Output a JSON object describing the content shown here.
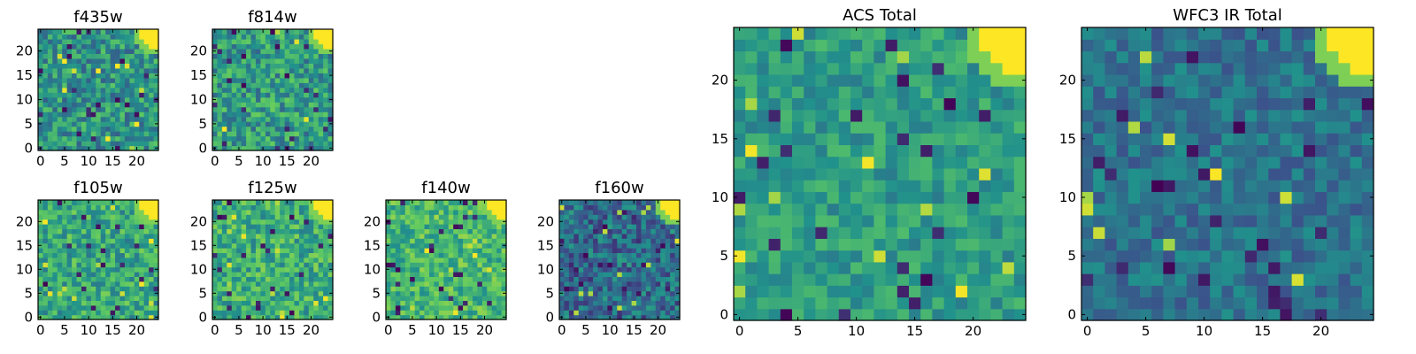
{
  "figure": {
    "colormap": "viridis",
    "colormap_stops": [
      "#440154",
      "#3b528b",
      "#21918c",
      "#5ec962",
      "#fde725"
    ]
  },
  "chart_data": [
    {
      "type": "heatmap",
      "title": "f435w",
      "grid_size": 25,
      "xlim": [
        0,
        24
      ],
      "ylim": [
        0,
        24
      ],
      "xticks": [
        "0",
        "5",
        "10",
        "15",
        "20"
      ],
      "yticks": [
        "0",
        "5",
        "10",
        "15",
        "20"
      ],
      "bright_corner": "top-right",
      "mean_level": 0.52,
      "noise": 0.22,
      "grid": false
    },
    {
      "type": "heatmap",
      "title": "f814w",
      "grid_size": 25,
      "xlim": [
        0,
        24
      ],
      "ylim": [
        0,
        24
      ],
      "xticks": [
        "0",
        "5",
        "10",
        "15",
        "20"
      ],
      "yticks": [
        "0",
        "5",
        "10",
        "15",
        "20"
      ],
      "bright_corner": "top-right",
      "mean_level": 0.55,
      "noise": 0.22,
      "grid": false
    },
    {
      "type": "heatmap",
      "title": "f105w",
      "grid_size": 25,
      "xlim": [
        0,
        24
      ],
      "ylim": [
        0,
        24
      ],
      "xticks": [
        "0",
        "5",
        "10",
        "15",
        "20"
      ],
      "yticks": [
        "0",
        "5",
        "10",
        "15",
        "20"
      ],
      "bright_corner": "top-right",
      "mean_level": 0.6,
      "noise": 0.2,
      "grid": false
    },
    {
      "type": "heatmap",
      "title": "f125w",
      "grid_size": 25,
      "xlim": [
        0,
        24
      ],
      "ylim": [
        0,
        24
      ],
      "xticks": [
        "0",
        "5",
        "10",
        "15",
        "20"
      ],
      "yticks": [
        "0",
        "5",
        "10",
        "15",
        "20"
      ],
      "bright_corner": "top-right",
      "mean_level": 0.62,
      "noise": 0.2,
      "grid": false
    },
    {
      "type": "heatmap",
      "title": "f140w",
      "grid_size": 25,
      "xlim": [
        0,
        24
      ],
      "ylim": [
        0,
        24
      ],
      "xticks": [
        "0",
        "5",
        "10",
        "15",
        "20"
      ],
      "yticks": [
        "0",
        "5",
        "10",
        "15",
        "20"
      ],
      "bright_corner": "top-right",
      "mean_level": 0.66,
      "noise": 0.18,
      "grid": false
    },
    {
      "type": "heatmap",
      "title": "f160w",
      "grid_size": 25,
      "xlim": [
        0,
        24
      ],
      "ylim": [
        0,
        24
      ],
      "xticks": [
        "0",
        "5",
        "10",
        "15",
        "20"
      ],
      "yticks": [
        "0",
        "5",
        "10",
        "15",
        "20"
      ],
      "bright_corner": "top-right",
      "mean_level": 0.36,
      "noise": 0.2,
      "grid": false
    },
    {
      "type": "heatmap",
      "title": "ACS Total",
      "grid_size": 25,
      "xlim": [
        0,
        24
      ],
      "ylim": [
        0,
        24
      ],
      "xticks": [
        "0",
        "5",
        "10",
        "15",
        "20"
      ],
      "yticks": [
        "0",
        "5",
        "10",
        "15",
        "20"
      ],
      "bright_corner": "top-right",
      "mean_level": 0.55,
      "noise": 0.14,
      "grid": false
    },
    {
      "type": "heatmap",
      "title": "WFC3 IR Total",
      "grid_size": 25,
      "xlim": [
        0,
        24
      ],
      "ylim": [
        0,
        24
      ],
      "xticks": [
        "0",
        "5",
        "10",
        "15",
        "20"
      ],
      "yticks": [
        "0",
        "5",
        "10",
        "15",
        "20"
      ],
      "bright_corner": "top-right",
      "mean_level": 0.38,
      "noise": 0.13,
      "grid": false
    }
  ]
}
